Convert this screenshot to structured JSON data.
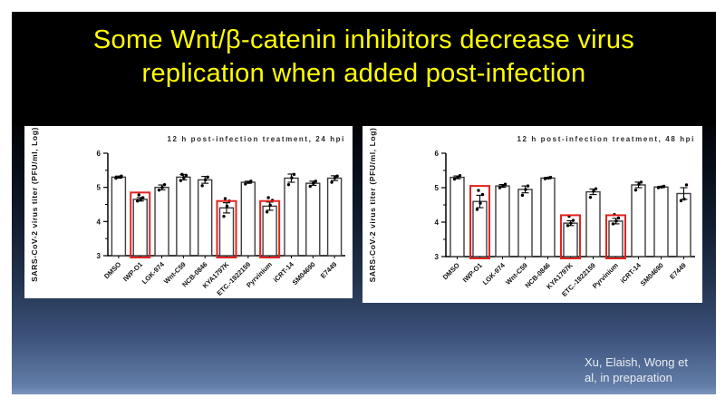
{
  "slide": {
    "title": {
      "line1": "Some Wnt/β-catenin inhibitors decrease virus",
      "line2": "replication when added post-infection"
    },
    "citation": {
      "line1": "Xu, Elaish, Wong et",
      "line2": "al, in preparation"
    },
    "colors": {
      "title_text": "#ffff00",
      "title_bg": "#000000",
      "slide_bg_bottom": "#637ea9",
      "citation_text": "#e9edf4",
      "highlight": "#e42320",
      "bar_stroke": "#3d3d3d",
      "axis": "#000000"
    }
  },
  "chart_data": [
    {
      "type": "bar",
      "title": "12 h post-infection treatment,  24 hpi",
      "ylabel": "SARS-CoV-2 virus titer (PFU/ml, Log)",
      "ylim": [
        3,
        6
      ],
      "yticks": [
        3,
        4,
        5,
        6
      ],
      "minor_ticks": [
        3.5,
        4.5,
        5.5
      ],
      "grid": false,
      "legend": "none",
      "categories": [
        "DMSO",
        "IWP-O1",
        "LGK-974",
        "Wnt-C59",
        "NCB-0846",
        "KYA1797K",
        "ETC.-1922159",
        "Pyrvinium",
        "iCRT-14",
        "SM04690",
        "E7449"
      ],
      "values": [
        5.3,
        4.65,
        5.0,
        5.3,
        5.22,
        4.4,
        5.15,
        4.45,
        5.27,
        5.12,
        5.27
      ],
      "errors": [
        0.03,
        0.05,
        0.07,
        0.08,
        0.1,
        0.15,
        0.03,
        0.12,
        0.12,
        0.06,
        0.07
      ],
      "points": [
        [
          5.27,
          5.3,
          5.33
        ],
        [
          4.6,
          4.65,
          4.7,
          4.78
        ],
        [
          4.92,
          5.0,
          5.08
        ],
        [
          5.2,
          5.28,
          5.35,
          5.38
        ],
        [
          5.05,
          5.22,
          5.3
        ],
        [
          4.15,
          4.45,
          4.6,
          4.67
        ],
        [
          5.1,
          5.15,
          5.18
        ],
        [
          4.28,
          4.48,
          4.62,
          4.7
        ],
        [
          5.08,
          5.28,
          5.38
        ],
        [
          5.03,
          5.12,
          5.18
        ],
        [
          5.15,
          5.28,
          5.33
        ]
      ],
      "highlights": [
        {
          "index": 1,
          "category": "IWP-O1",
          "top": 4.85
        },
        {
          "index": 5,
          "category": "KYA1797K",
          "top": 4.6
        },
        {
          "index": 7,
          "category": "Pyrvinium",
          "top": 4.6
        }
      ]
    },
    {
      "type": "bar",
      "title": "12 h post-infection treatment,  48 hpi",
      "ylabel": "SARS-CoV-2 virus titer (PFU/ml, Log)",
      "ylim": [
        3,
        6
      ],
      "yticks": [
        3,
        4,
        5,
        6
      ],
      "minor_ticks": [
        3.5,
        4.5,
        5.5
      ],
      "grid": false,
      "legend": "none",
      "categories": [
        "DMSO",
        "IWP-O1",
        "LGK-974",
        "Wnt-C59",
        "NCB-0846",
        "KYA1797K",
        "ETC.-1922159",
        "Pyrvinium",
        "iCRT-14",
        "SM04690",
        "E7449"
      ],
      "values": [
        5.3,
        4.6,
        5.05,
        4.95,
        5.28,
        3.97,
        4.88,
        4.03,
        5.08,
        5.02,
        4.83
      ],
      "errors": [
        0.04,
        0.18,
        0.04,
        0.1,
        0.02,
        0.07,
        0.08,
        0.08,
        0.08,
        0.02,
        0.17
      ],
      "points": [
        [
          5.25,
          5.3,
          5.35
        ],
        [
          4.37,
          4.55,
          4.8,
          4.92
        ],
        [
          5.0,
          5.05,
          5.1
        ],
        [
          4.78,
          4.95,
          5.05
        ],
        [
          5.26,
          5.28,
          5.3
        ],
        [
          3.9,
          3.97,
          4.05,
          4.17
        ],
        [
          4.72,
          4.9,
          4.97
        ],
        [
          3.95,
          4.03,
          4.12,
          4.22
        ],
        [
          4.93,
          5.1,
          5.16
        ],
        [
          5.0,
          5.02,
          5.04
        ],
        [
          4.62,
          4.67,
          5.08
        ]
      ],
      "highlights": [
        {
          "index": 1,
          "category": "IWP-O1",
          "top": 5.05
        },
        {
          "index": 5,
          "category": "KYA1797K",
          "top": 4.2
        },
        {
          "index": 7,
          "category": "Pyrvinium",
          "top": 4.2
        }
      ]
    }
  ]
}
